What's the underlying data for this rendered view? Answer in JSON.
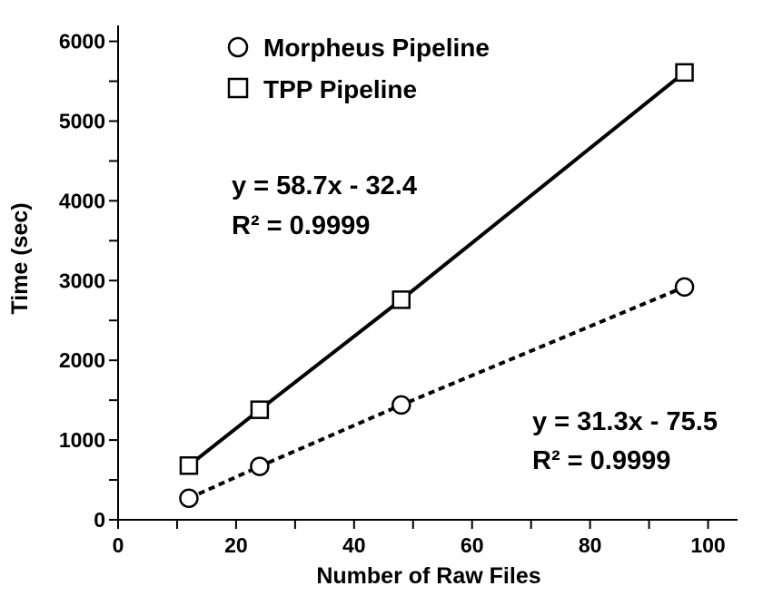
{
  "chart_data": {
    "type": "scatter",
    "xlabel": "Number of Raw Files",
    "ylabel": "Time (sec)",
    "xlim": [
      0,
      105
    ],
    "ylim": [
      0,
      6200
    ],
    "xticks": [
      "0",
      "20",
      "40",
      "60",
      "80",
      "100"
    ],
    "yticks": [
      "0",
      "1000",
      "2000",
      "3000",
      "4000",
      "5000",
      "6000"
    ],
    "grid": false,
    "legend_position": "top-left",
    "series": [
      {
        "name": "Morpheus Pipeline",
        "marker": "circle",
        "line_style": "dotted",
        "x": [
          12,
          24,
          48,
          96
        ],
        "y": [
          270,
          670,
          1440,
          2920
        ],
        "fit": {
          "slope": 31.3,
          "intercept": -75.5
        },
        "equation": "y = 31.3x  - 75.5",
        "r2": "R² = 0.9999"
      },
      {
        "name": "TPP Pipeline",
        "marker": "square",
        "line_style": "solid",
        "x": [
          12,
          24,
          48,
          96
        ],
        "y": [
          680,
          1380,
          2760,
          5610
        ],
        "fit": {
          "slope": 58.7,
          "intercept": -32.4
        },
        "equation": "y = 58.7x - 32.4",
        "r2": "R² = 0.9999"
      }
    ]
  }
}
